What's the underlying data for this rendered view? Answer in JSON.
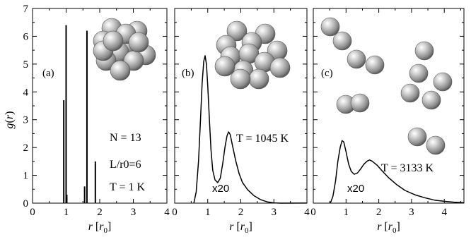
{
  "chart_data": [
    {
      "type": "line",
      "panel_label": "(a)",
      "xlabel": "r [r0]",
      "ylabel": "g(r)",
      "xlim": [
        0,
        4
      ],
      "ylim": [
        0,
        7
      ],
      "x_ticks": [
        0,
        1,
        2,
        3,
        4
      ],
      "y_ticks": [
        0,
        1,
        2,
        3,
        4,
        5,
        6,
        7
      ],
      "render": "spikes",
      "spikes": [
        {
          "x": 0.93,
          "y": 3.7
        },
        {
          "x": 1.0,
          "y": 6.4
        },
        {
          "x": 1.02,
          "y": 0.3
        },
        {
          "x": 1.55,
          "y": 0.6
        },
        {
          "x": 1.62,
          "y": 6.2
        },
        {
          "x": 1.87,
          "y": 1.5
        }
      ],
      "annotations": [
        "N = 13",
        "L/r0=6",
        "T = 1 K"
      ],
      "cluster": "compact"
    },
    {
      "type": "line",
      "panel_label": "(b)",
      "xlabel": "r [r0]",
      "xlim": [
        0,
        4
      ],
      "ylim": [
        0,
        7
      ],
      "x_ticks": [
        0,
        1,
        2,
        3,
        4
      ],
      "render": "curve",
      "points": [
        [
          0.58,
          0.0
        ],
        [
          0.65,
          0.4
        ],
        [
          0.72,
          1.5
        ],
        [
          0.78,
          3.0
        ],
        [
          0.83,
          4.3
        ],
        [
          0.88,
          5.1
        ],
        [
          0.92,
          5.3
        ],
        [
          0.96,
          5.0
        ],
        [
          1.0,
          4.2
        ],
        [
          1.05,
          3.0
        ],
        [
          1.1,
          1.9
        ],
        [
          1.15,
          1.2
        ],
        [
          1.22,
          0.85
        ],
        [
          1.3,
          0.75
        ],
        [
          1.38,
          0.9
        ],
        [
          1.45,
          1.4
        ],
        [
          1.52,
          2.0
        ],
        [
          1.58,
          2.4
        ],
        [
          1.63,
          2.55
        ],
        [
          1.68,
          2.45
        ],
        [
          1.75,
          2.05
        ],
        [
          1.85,
          1.5
        ],
        [
          1.95,
          1.05
        ],
        [
          2.05,
          0.75
        ],
        [
          2.2,
          0.5
        ],
        [
          2.4,
          0.28
        ],
        [
          2.6,
          0.14
        ],
        [
          2.8,
          0.06
        ],
        [
          3.0,
          0.02
        ],
        [
          3.2,
          0.0
        ],
        [
          4.0,
          0.0
        ]
      ],
      "annotations": [
        "T = 1045 K",
        "x20"
      ],
      "cluster": "compact"
    },
    {
      "type": "line",
      "panel_label": "(c)",
      "xlabel": "r [r0]",
      "xlim": [
        0,
        4.6
      ],
      "ylim": [
        0,
        7
      ],
      "x_ticks": [
        0,
        1,
        2,
        3,
        4
      ],
      "render": "curve",
      "points": [
        [
          0.52,
          0.0
        ],
        [
          0.6,
          0.25
        ],
        [
          0.68,
          0.8
        ],
        [
          0.75,
          1.5
        ],
        [
          0.82,
          2.0
        ],
        [
          0.88,
          2.25
        ],
        [
          0.93,
          2.2
        ],
        [
          1.0,
          1.85
        ],
        [
          1.08,
          1.4
        ],
        [
          1.16,
          1.15
        ],
        [
          1.25,
          1.05
        ],
        [
          1.35,
          1.1
        ],
        [
          1.45,
          1.25
        ],
        [
          1.55,
          1.42
        ],
        [
          1.65,
          1.52
        ],
        [
          1.72,
          1.55
        ],
        [
          1.8,
          1.5
        ],
        [
          1.95,
          1.35
        ],
        [
          2.1,
          1.15
        ],
        [
          2.3,
          0.9
        ],
        [
          2.55,
          0.65
        ],
        [
          2.8,
          0.45
        ],
        [
          3.1,
          0.3
        ],
        [
          3.4,
          0.2
        ],
        [
          3.7,
          0.12
        ],
        [
          4.0,
          0.08
        ],
        [
          4.3,
          0.05
        ],
        [
          4.6,
          0.03
        ]
      ],
      "annotations": [
        "T = 3133 K",
        "x20"
      ],
      "cluster": "dissociated"
    }
  ]
}
